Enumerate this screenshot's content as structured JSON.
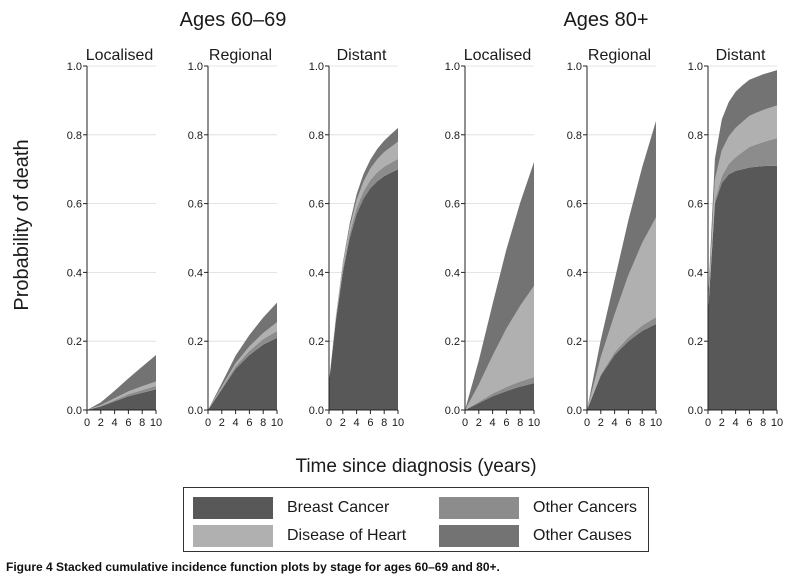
{
  "figure": {
    "group_titles": [
      "Ages 60–69",
      "Ages 80+"
    ],
    "ylabel": "Probability of death",
    "xlabel": "Time since diagnosis (years)",
    "caption": "Figure 4 Stacked cumulative incidence function plots by stage for ages 60–69 and 80+."
  },
  "legend": {
    "items": [
      {
        "label": "Breast Cancer",
        "color": "#585858"
      },
      {
        "label": "Disease of Heart",
        "color": "#b0b0b0"
      },
      {
        "label": "Other Cancers",
        "color": "#8c8c8c"
      },
      {
        "label": "Other Causes",
        "color": "#737373"
      }
    ]
  },
  "chart_data": [
    {
      "type": "area",
      "group": "Ages 60–69",
      "title": "Localised",
      "x": [
        0,
        2,
        4,
        6,
        8,
        10
      ],
      "xticks": [
        "0",
        "2",
        "4",
        "6",
        "8",
        "10"
      ],
      "yticks": [
        "0.0",
        "0.2",
        "0.4",
        "0.6",
        "0.8",
        "1.0"
      ],
      "ylim": [
        0,
        1
      ],
      "xlim": [
        0,
        10
      ],
      "series": [
        {
          "name": "Breast Cancer",
          "values": [
            0,
            0.01,
            0.025,
            0.04,
            0.05,
            0.06
          ]
        },
        {
          "name": "Other Cancers",
          "values": [
            0,
            0.002,
            0.004,
            0.006,
            0.008,
            0.01
          ]
        },
        {
          "name": "Disease of Heart",
          "values": [
            0,
            0.002,
            0.005,
            0.008,
            0.011,
            0.013
          ]
        },
        {
          "name": "Other Causes",
          "values": [
            0,
            0.008,
            0.022,
            0.038,
            0.057,
            0.077
          ]
        }
      ]
    },
    {
      "type": "area",
      "group": "Ages 60–69",
      "title": "Regional",
      "x": [
        0,
        2,
        4,
        6,
        8,
        10
      ],
      "xticks": [
        "0",
        "2",
        "4",
        "6",
        "8",
        "10"
      ],
      "yticks": [
        "0.0",
        "0.2",
        "0.4",
        "0.6",
        "0.8",
        "1.0"
      ],
      "ylim": [
        0,
        1
      ],
      "xlim": [
        0,
        10
      ],
      "series": [
        {
          "name": "Breast Cancer",
          "values": [
            0,
            0.06,
            0.12,
            0.16,
            0.19,
            0.21
          ]
        },
        {
          "name": "Other Cancers",
          "values": [
            0,
            0.004,
            0.008,
            0.012,
            0.016,
            0.02
          ]
        },
        {
          "name": "Disease of Heart",
          "values": [
            0,
            0.004,
            0.008,
            0.013,
            0.018,
            0.025
          ]
        },
        {
          "name": "Other Causes",
          "values": [
            0,
            0.01,
            0.022,
            0.033,
            0.045,
            0.057
          ]
        }
      ]
    },
    {
      "type": "area",
      "group": "Ages 60–69",
      "title": "Distant",
      "x": [
        0,
        1,
        2,
        3,
        4,
        5,
        6,
        7,
        8,
        9,
        10
      ],
      "xticks": [
        "0",
        "2",
        "4",
        "6",
        "8",
        "10"
      ],
      "yticks": [
        "0.0",
        "0.2",
        "0.4",
        "0.6",
        "0.8",
        "1.0"
      ],
      "ylim": [
        0,
        1
      ],
      "xlim": [
        0,
        10
      ],
      "series": [
        {
          "name": "Breast Cancer",
          "values": [
            0.08,
            0.26,
            0.4,
            0.5,
            0.57,
            0.615,
            0.645,
            0.665,
            0.68,
            0.69,
            0.7
          ]
        },
        {
          "name": "Other Cancers",
          "values": [
            0,
            0.005,
            0.01,
            0.014,
            0.018,
            0.021,
            0.024,
            0.026,
            0.028,
            0.029,
            0.03
          ]
        },
        {
          "name": "Disease of Heart",
          "values": [
            0,
            0.005,
            0.01,
            0.016,
            0.022,
            0.028,
            0.033,
            0.038,
            0.042,
            0.046,
            0.05
          ]
        },
        {
          "name": "Other Causes",
          "values": [
            0,
            0.003,
            0.007,
            0.012,
            0.017,
            0.022,
            0.026,
            0.03,
            0.033,
            0.037,
            0.04
          ]
        }
      ]
    },
    {
      "type": "area",
      "group": "Ages 80+",
      "title": "Localised",
      "x": [
        0,
        2,
        4,
        6,
        8,
        10
      ],
      "xticks": [
        "0",
        "2",
        "4",
        "6",
        "8",
        "10"
      ],
      "yticks": [
        "0.0",
        "0.2",
        "0.4",
        "0.6",
        "0.8",
        "1.0"
      ],
      "ylim": [
        0,
        1
      ],
      "xlim": [
        0,
        10
      ],
      "series": [
        {
          "name": "Breast Cancer",
          "values": [
            0,
            0.02,
            0.04,
            0.055,
            0.068,
            0.078
          ]
        },
        {
          "name": "Other Cancers",
          "values": [
            0,
            0.004,
            0.008,
            0.012,
            0.015,
            0.018
          ]
        },
        {
          "name": "Disease of Heart",
          "values": [
            0,
            0.05,
            0.11,
            0.17,
            0.22,
            0.265
          ]
        },
        {
          "name": "Other Causes",
          "values": [
            0,
            0.07,
            0.15,
            0.23,
            0.3,
            0.36
          ]
        }
      ]
    },
    {
      "type": "area",
      "group": "Ages 80+",
      "title": "Regional",
      "x": [
        0,
        2,
        4,
        6,
        8,
        10
      ],
      "xticks": [
        "0",
        "2",
        "4",
        "6",
        "8",
        "10"
      ],
      "yticks": [
        "0.0",
        "0.2",
        "0.4",
        "0.6",
        "0.8",
        "1.0"
      ],
      "ylim": [
        0,
        1
      ],
      "xlim": [
        0,
        10
      ],
      "series": [
        {
          "name": "Breast Cancer",
          "values": [
            0,
            0.1,
            0.16,
            0.2,
            0.23,
            0.25
          ]
        },
        {
          "name": "Other Cancers",
          "values": [
            0,
            0.004,
            0.008,
            0.012,
            0.016,
            0.02
          ]
        },
        {
          "name": "Disease of Heart",
          "values": [
            0,
            0.05,
            0.11,
            0.18,
            0.24,
            0.29
          ]
        },
        {
          "name": "Other Causes",
          "values": [
            0,
            0.05,
            0.1,
            0.16,
            0.22,
            0.28
          ]
        }
      ]
    },
    {
      "type": "area",
      "group": "Ages 80+",
      "title": "Distant",
      "x": [
        0,
        1,
        2,
        3,
        4,
        5,
        6,
        7,
        8,
        9,
        10
      ],
      "xticks": [
        "0",
        "2",
        "4",
        "6",
        "8",
        "10"
      ],
      "yticks": [
        "0.0",
        "0.2",
        "0.4",
        "0.6",
        "0.8",
        "1.0"
      ],
      "ylim": [
        0,
        1
      ],
      "xlim": [
        0,
        10
      ],
      "series": [
        {
          "name": "Breast Cancer",
          "values": [
            0.28,
            0.6,
            0.66,
            0.685,
            0.695,
            0.7,
            0.705,
            0.707,
            0.709,
            0.71,
            0.71
          ]
        },
        {
          "name": "Other Cancers",
          "values": [
            0,
            0.01,
            0.02,
            0.03,
            0.04,
            0.05,
            0.06,
            0.065,
            0.07,
            0.075,
            0.08
          ]
        },
        {
          "name": "Disease of Heart",
          "values": [
            0.02,
            0.06,
            0.075,
            0.08,
            0.085,
            0.088,
            0.09,
            0.092,
            0.093,
            0.094,
            0.095
          ]
        },
        {
          "name": "Other Causes",
          "values": [
            0.02,
            0.06,
            0.09,
            0.1,
            0.105,
            0.106,
            0.105,
            0.104,
            0.104,
            0.103,
            0.103
          ]
        }
      ]
    }
  ]
}
